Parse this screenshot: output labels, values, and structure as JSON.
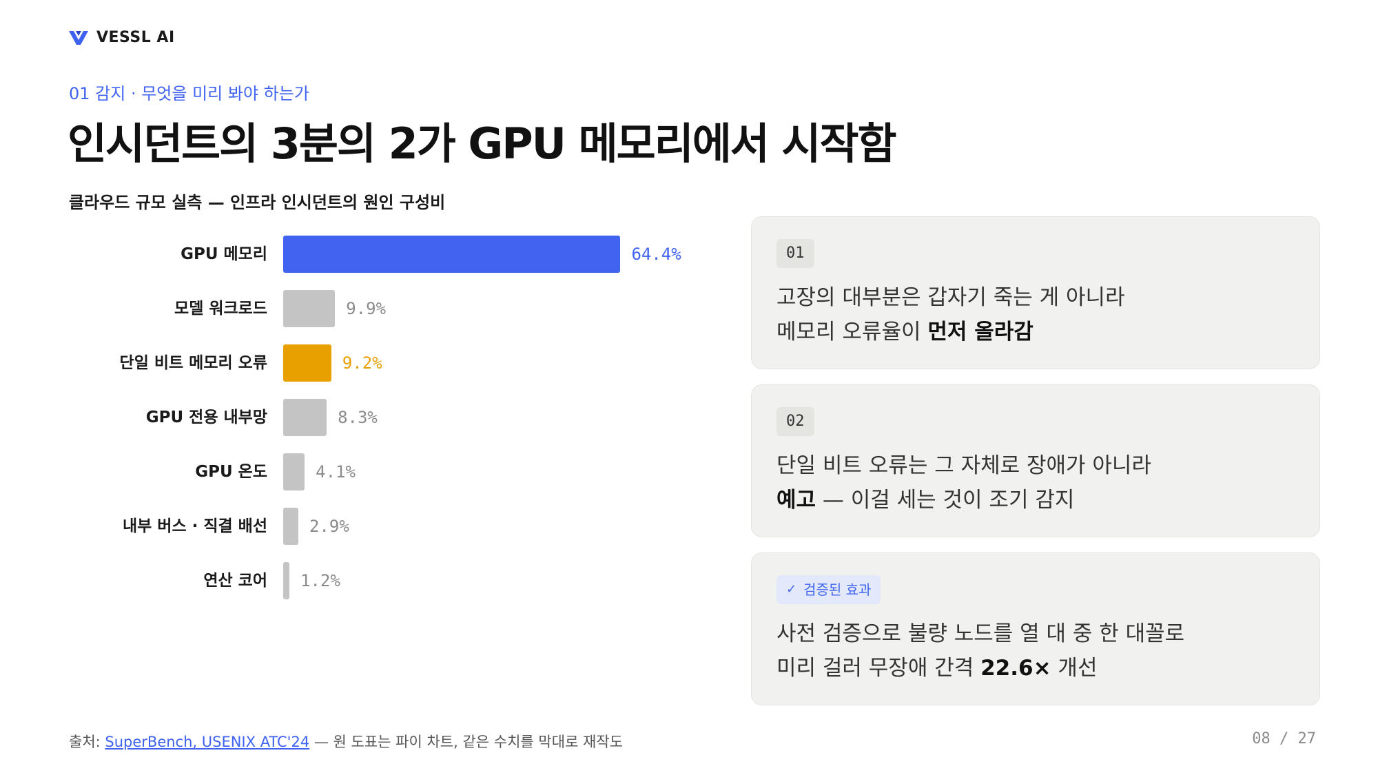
{
  "brand": {
    "name": "VESSL AI",
    "logo_icon": "vessl-v-logo-icon",
    "color": "#3f63f0"
  },
  "eyebrow": "01 감지 · 무엇을 미리 봐야 하는가",
  "title": "인시던트의 3분의 2가 GPU 메모리에서 시작함",
  "chart_data": {
    "type": "bar",
    "orientation": "horizontal",
    "title": "클라우드 규모 실측 — 인프라 인시던트의 원인 구성비",
    "categories": [
      "GPU 메모리",
      "모델 워크로드",
      "단일 비트 메모리 오류",
      "GPU 전용 내부망",
      "GPU 온도",
      "내부 버스 · 직결 배선",
      "연산 코어"
    ],
    "values": [
      64.4,
      9.9,
      9.2,
      8.3,
      4.1,
      2.9,
      1.2
    ],
    "value_labels": [
      "64.4%",
      "9.9%",
      "9.2%",
      "8.3%",
      "4.1%",
      "2.9%",
      "1.2%"
    ],
    "unit": "%",
    "xlim": [
      0,
      100
    ],
    "colors": [
      "#4163f0",
      "#c4c4c4",
      "#e8a000",
      "#c4c4c4",
      "#c4c4c4",
      "#c4c4c4",
      "#c4c4c4"
    ],
    "label_colors": [
      "#4163f0",
      "#8a8a8a",
      "#e8a000",
      "#8a8a8a",
      "#8a8a8a",
      "#8a8a8a",
      "#8a8a8a"
    ],
    "grid": false,
    "legend": "none"
  },
  "cards": [
    {
      "tag": "01",
      "lines": [
        {
          "text": "고장의 대부분은 갑자기 죽는 게 아니라",
          "bold": "",
          "after": ""
        },
        {
          "text": "메모리 오류율이 ",
          "bold": "먼저 올라감",
          "after": ""
        }
      ]
    },
    {
      "tag": "02",
      "lines": [
        {
          "text": "단일 비트 오류는 그 자체로 장애가 아니라",
          "bold": "",
          "after": ""
        },
        {
          "text": "",
          "bold": "예고",
          "after": " — 이걸 세는 것이 조기 감지"
        }
      ]
    },
    {
      "tag": "검증된 효과",
      "tag_icon": "check-icon",
      "lines": [
        {
          "text": "사전 검증으로 불량 노드를 열 대 중 한 대꼴로",
          "bold": "",
          "after": ""
        },
        {
          "text": "미리 걸러 무장애 간격 ",
          "bold": "22.6×",
          "after": " 개선"
        }
      ]
    }
  ],
  "footer": {
    "prefix": "출처: ",
    "link": "SuperBench, USENIX ATC'24",
    "suffix": " — 원 도표는 파이 차트, 같은 수치를 막대로 재작도"
  },
  "page": "08 / 27"
}
